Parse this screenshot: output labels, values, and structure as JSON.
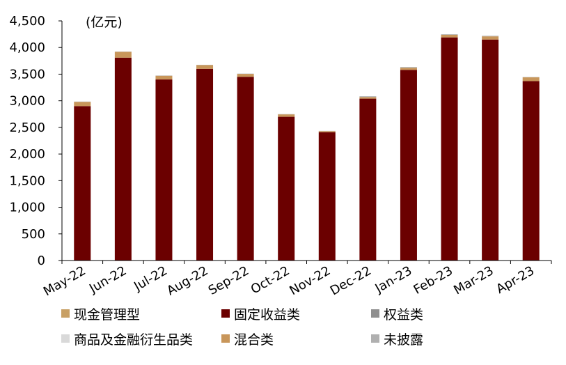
{
  "chart_data": {
    "type": "bar",
    "stacked": true,
    "unit_label": "(亿元)",
    "categories": [
      "May-22",
      "Jun-22",
      "Jul-22",
      "Aug-22",
      "Sep-22",
      "Oct-22",
      "Nov-22",
      "Dec-22",
      "Jan-23",
      "Feb-23",
      "Mar-23",
      "Apr-23"
    ],
    "ylim": [
      0,
      4500
    ],
    "yticks": [
      "0",
      "500",
      "1,000",
      "1,500",
      "2,000",
      "2,500",
      "3,000",
      "3,500",
      "4,000",
      "4,500"
    ],
    "ytick_values": [
      0,
      500,
      1000,
      1500,
      2000,
      2500,
      3000,
      3500,
      4000,
      4500
    ],
    "series": [
      {
        "name": "现金管理型",
        "color": "#c8a065",
        "values": [
          0,
          0,
          0,
          0,
          0,
          0,
          0,
          0,
          0,
          0,
          0,
          0
        ]
      },
      {
        "name": "固定收益类",
        "color": "#6b0000",
        "values": [
          2900,
          3810,
          3400,
          3600,
          3450,
          2700,
          2410,
          3040,
          3580,
          4190,
          4150,
          3370
        ]
      },
      {
        "name": "权益类",
        "color": "#8f8f8f",
        "values": [
          0,
          0,
          0,
          0,
          0,
          0,
          0,
          0,
          0,
          0,
          0,
          0
        ]
      },
      {
        "name": "商品及金融衍生品类",
        "color": "#d9d9d9",
        "values": [
          0,
          0,
          0,
          0,
          0,
          0,
          0,
          0,
          0,
          0,
          0,
          0
        ]
      },
      {
        "name": "混合类",
        "color": "#c8965a",
        "values": [
          80,
          110,
          70,
          70,
          55,
          45,
          20,
          30,
          40,
          50,
          60,
          70
        ]
      },
      {
        "name": "未披露",
        "color": "#b0b0b0",
        "values": [
          5,
          5,
          5,
          5,
          5,
          5,
          5,
          15,
          15,
          10,
          10,
          5
        ]
      }
    ],
    "grid": false,
    "legend_position": "bottom"
  }
}
